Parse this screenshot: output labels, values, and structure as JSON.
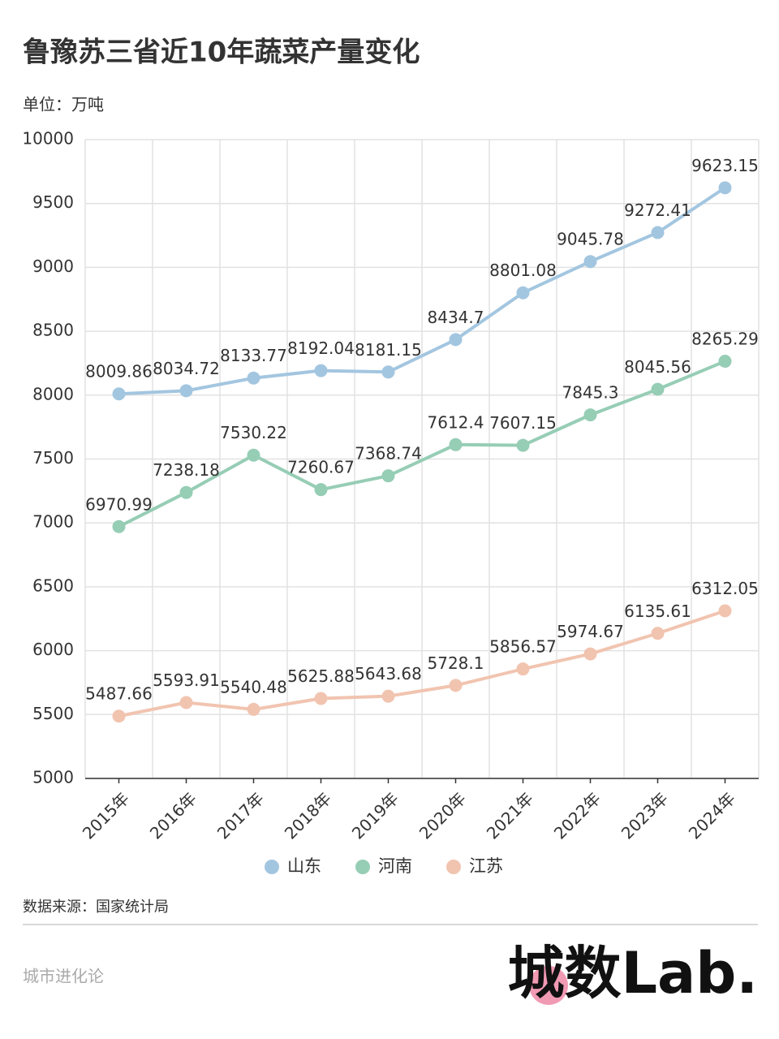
{
  "chart_data": {
    "type": "line",
    "title": "鲁豫苏三省近10年蔬菜产量变化",
    "y_label": "单位：万吨",
    "categories": [
      "2015年",
      "2016年",
      "2017年",
      "2018年",
      "2019年",
      "2020年",
      "2021年",
      "2022年",
      "2023年",
      "2024年"
    ],
    "series": [
      {
        "name": "山东",
        "color": "#a3c6e0",
        "values": [
          8009.86,
          8034.72,
          8133.77,
          8192.04,
          8181.15,
          8434.7,
          8801.08,
          9045.78,
          9272.41,
          9623.15
        ]
      },
      {
        "name": "河南",
        "color": "#96cdb5",
        "values": [
          6970.99,
          7238.18,
          7530.22,
          7260.67,
          7368.74,
          7612.4,
          7607.15,
          7845.3,
          8045.56,
          8265.29
        ]
      },
      {
        "name": "江苏",
        "color": "#f1c4b0",
        "values": [
          5487.66,
          5593.91,
          5540.48,
          5625.88,
          5643.68,
          5728.1,
          5856.57,
          5974.67,
          6135.61,
          6312.05
        ]
      }
    ],
    "ylim": [
      5000,
      10000
    ],
    "yticks": [
      5000,
      5500,
      6000,
      6500,
      7000,
      7500,
      8000,
      8500,
      9000,
      9500,
      10000
    ],
    "grid": true,
    "legend": "bottom"
  },
  "source": "数据来源：国家统计局",
  "brand": "城市进化论",
  "logo": "城数Lab."
}
